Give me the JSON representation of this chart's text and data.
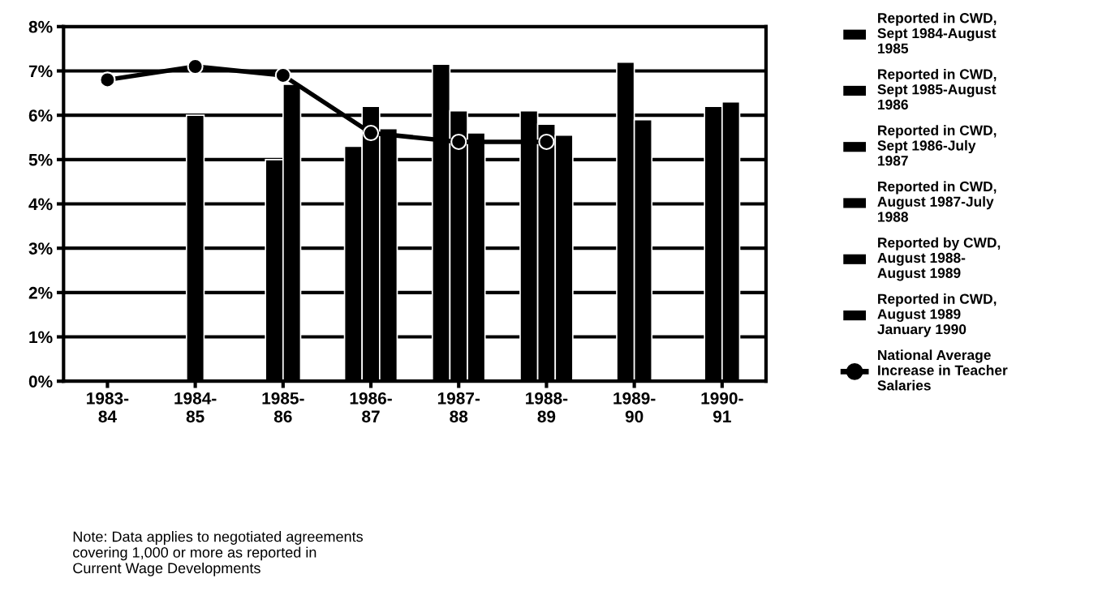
{
  "chart_data": {
    "type": "bar",
    "categories": [
      "1983-84",
      "1984-85",
      "1985-86",
      "1986-87",
      "1987-88",
      "1988-89",
      "1989-90",
      "1990-91"
    ],
    "series": [
      {
        "name": "Reported in CWD,\nSept 1984-August\n1985",
        "color": "#000000",
        "values": [
          null,
          6.0,
          5.0,
          5.3,
          null,
          null,
          null,
          null
        ]
      },
      {
        "name": "Reported in CWD,\nSept 1985-August\n1986",
        "color": "#000000",
        "values": [
          null,
          null,
          6.7,
          6.2,
          7.15,
          null,
          null,
          null
        ]
      },
      {
        "name": "Reported in CWD,\nSept 1986-July\n1987",
        "color": "#000000",
        "values": [
          null,
          null,
          null,
          5.7,
          6.1,
          6.1,
          null,
          null
        ]
      },
      {
        "name": "Reported in CWD,\nAugust 1987-July\n1988",
        "color": "#000000",
        "values": [
          null,
          null,
          null,
          null,
          5.6,
          5.8,
          null,
          null
        ]
      },
      {
        "name": "Reported by CWD,\nAugust 1988-\nAugust 1989",
        "color": "#000000",
        "values": [
          null,
          null,
          null,
          null,
          null,
          5.55,
          7.2,
          6.2
        ]
      },
      {
        "name": "Reported in CWD,\nAugust 1989\nJanuary 1990",
        "color": "#000000",
        "values": [
          null,
          null,
          null,
          null,
          null,
          null,
          5.9,
          6.3
        ]
      },
      {
        "name": "National Average\nIncrease in Teacher\nSalaries",
        "type": "line",
        "color": "#000000",
        "marker": "circle",
        "line_style": "solid",
        "values": [
          6.8,
          7.1,
          6.9,
          5.6,
          5.4,
          5.4,
          null,
          null
        ]
      }
    ],
    "ylim": [
      0,
      8
    ],
    "yticks": [
      {
        "value": 0,
        "label": "0%"
      },
      {
        "value": 1,
        "label": "1%"
      },
      {
        "value": 2,
        "label": "2%"
      },
      {
        "value": 3,
        "label": "3%"
      },
      {
        "value": 4,
        "label": "4%"
      },
      {
        "value": 5,
        "label": "5%"
      },
      {
        "value": 6,
        "label": "6%"
      },
      {
        "value": 7,
        "label": "7%"
      },
      {
        "value": 8,
        "label": "8%"
      }
    ],
    "grid": "y",
    "legend": "right",
    "annotations": [
      "Note: Data applies to negotiated agreements\ncovering 1,000 or more as reported in\nCurrent Wage Developments"
    ]
  }
}
